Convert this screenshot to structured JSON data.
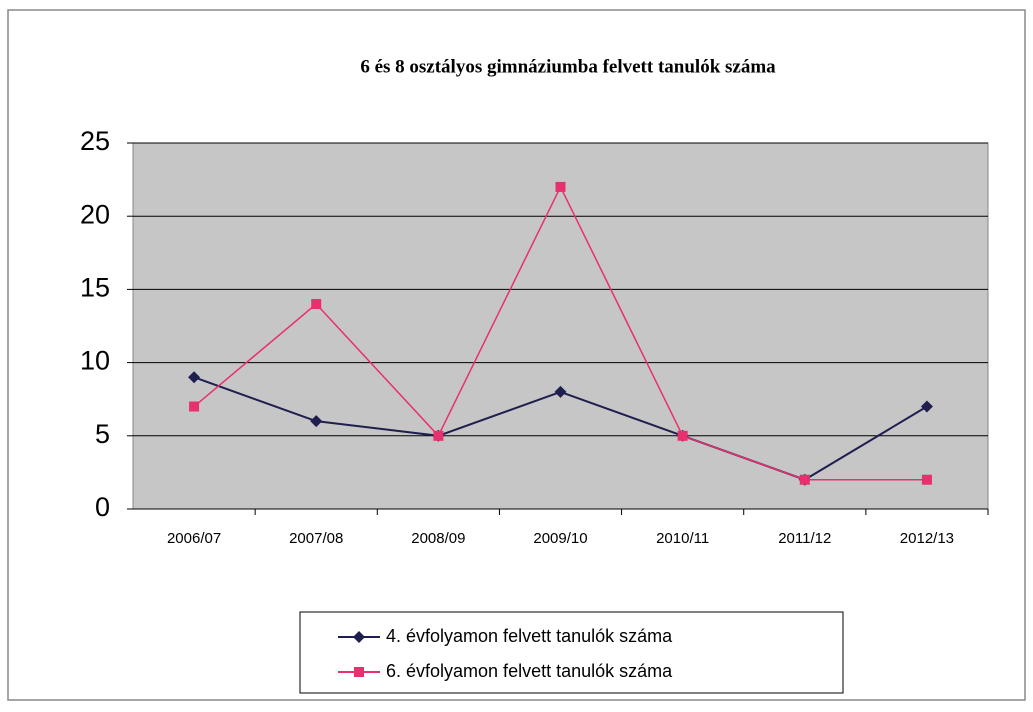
{
  "chart_data": {
    "type": "line",
    "title": "6 és 8 osztályos gimnáziumba felvett tanulók száma",
    "categories": [
      "2006/07",
      "2007/08",
      "2008/09",
      "2009/10",
      "2010/11",
      "2011/12",
      "2012/13"
    ],
    "series": [
      {
        "name": "4. évfolyamon felvett tanulók száma",
        "color": "#1f1f4f",
        "marker": "diamond",
        "values": [
          9,
          6,
          5,
          8,
          5,
          2,
          7
        ]
      },
      {
        "name": "6. évfolyamon felvett tanulók száma",
        "color": "#e8306e",
        "marker": "square",
        "values": [
          7,
          14,
          5,
          22,
          5,
          2,
          2
        ]
      }
    ],
    "ylim": [
      0,
      25
    ],
    "yticks": [
      0,
      5,
      10,
      15,
      20,
      25
    ],
    "grid": true,
    "legend": "bottom"
  }
}
